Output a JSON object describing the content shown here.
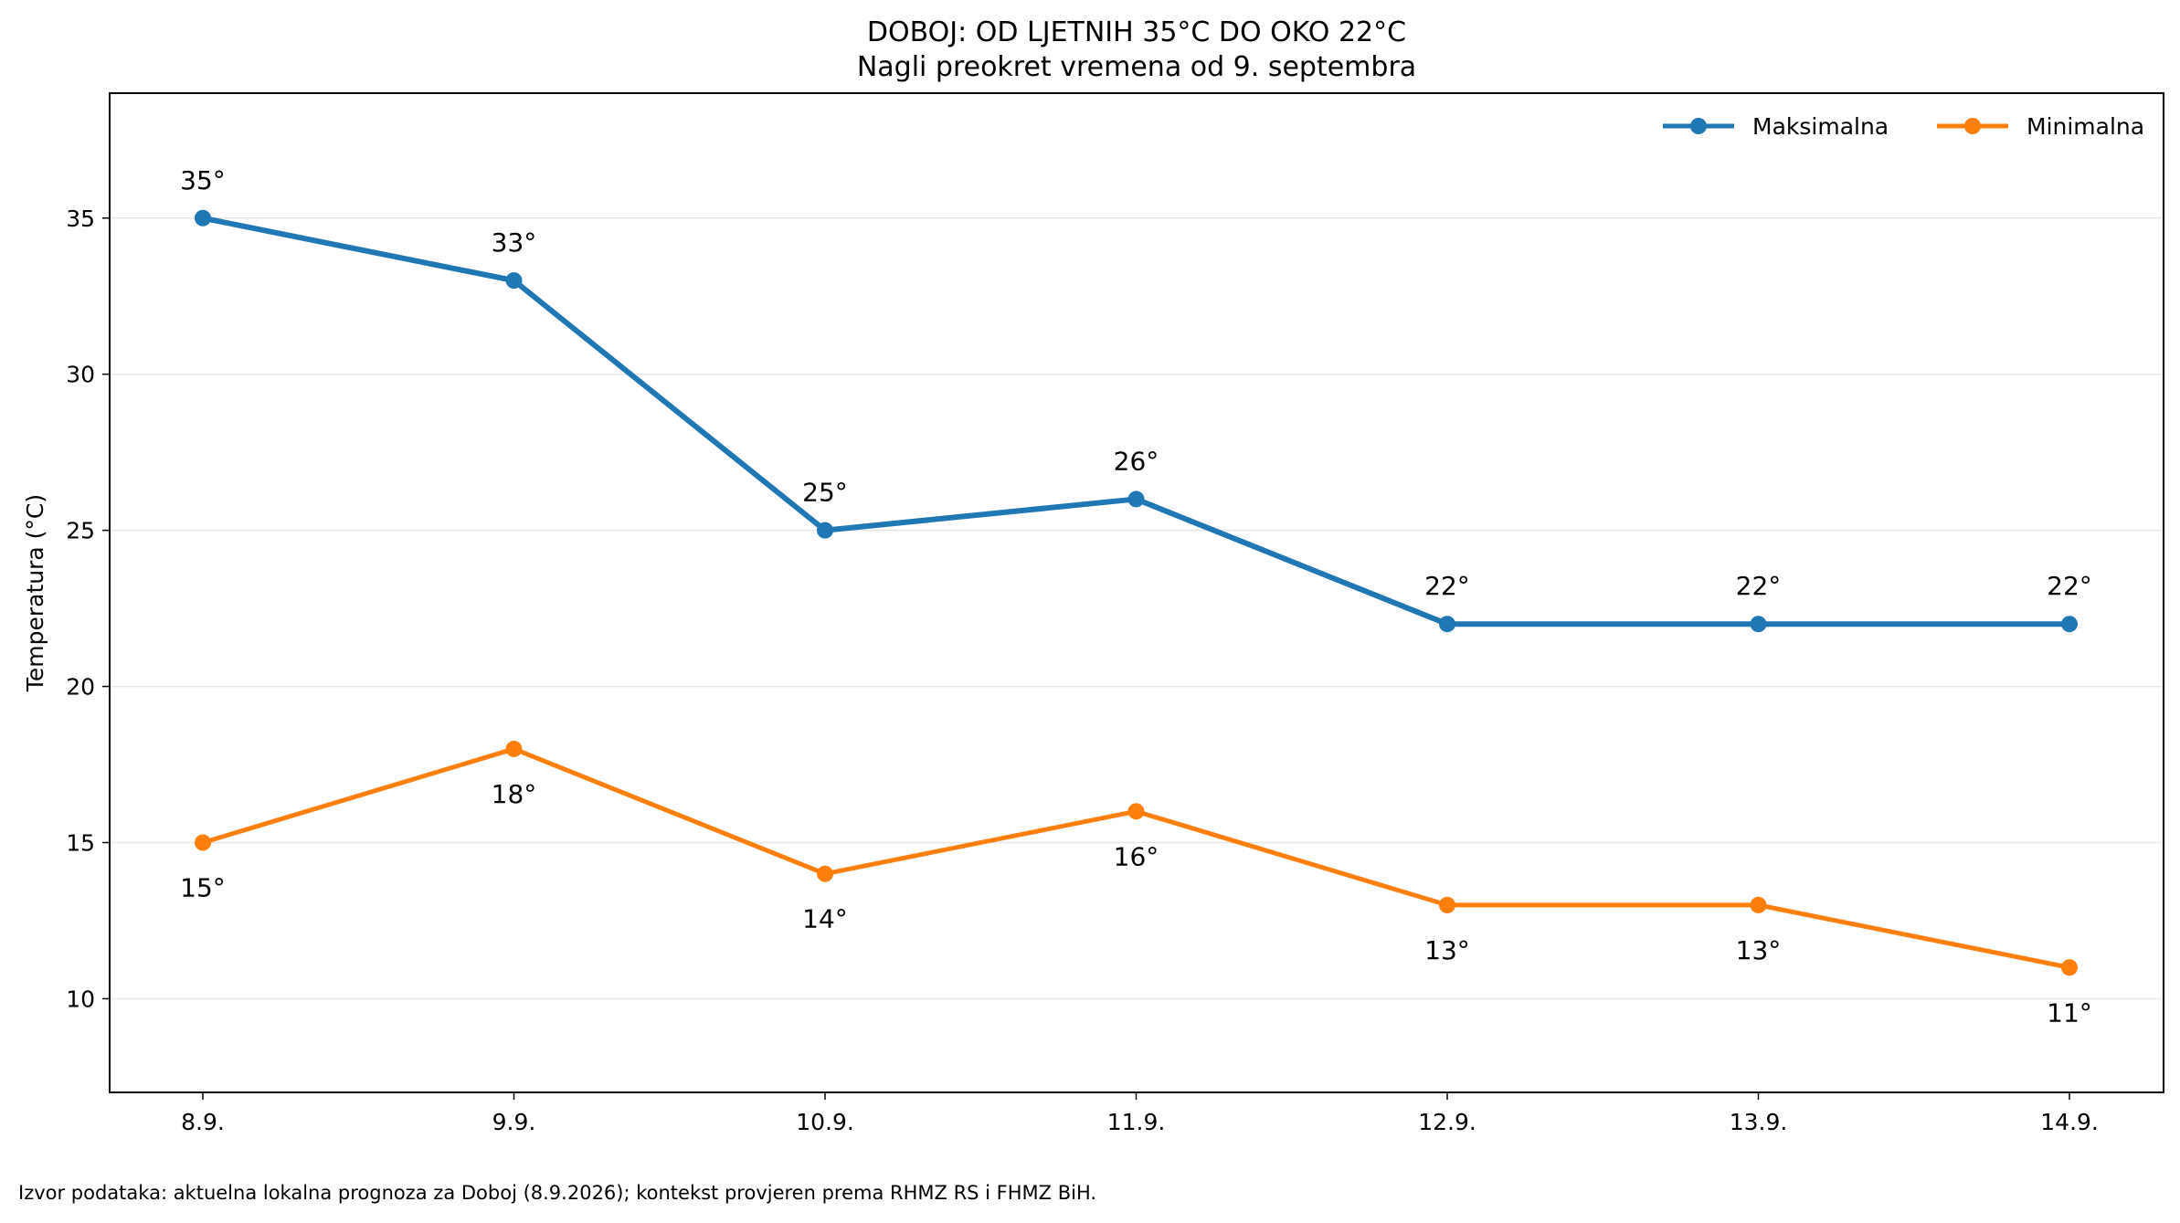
{
  "chart_data": {
    "type": "line",
    "title": "DOBOJ: OD LJETNIH 35°C DO OKO 22°C",
    "subtitle": "Nagli preokret vremena od 9. septembra",
    "xlabel": "",
    "ylabel": "Temperatura (°C)",
    "categories": [
      "8.9.",
      "9.9.",
      "10.9.",
      "11.9.",
      "12.9.",
      "13.9.",
      "14.9."
    ],
    "ylim": [
      7,
      39
    ],
    "yticks": [
      10,
      15,
      20,
      25,
      30,
      35
    ],
    "grid": "horizontal",
    "legend_position": "top-right",
    "series": [
      {
        "name": "Maksimalna",
        "color": "#1f77b4",
        "values": [
          35,
          33,
          25,
          26,
          22,
          22,
          22
        ],
        "labels": [
          "35°",
          "33°",
          "25°",
          "26°",
          "22°",
          "22°",
          "22°"
        ],
        "label_side": "above"
      },
      {
        "name": "Minimalna",
        "color": "#ff7f0e",
        "values": [
          15,
          18,
          14,
          16,
          13,
          13,
          11
        ],
        "labels": [
          "15°",
          "18°",
          "14°",
          "16°",
          "13°",
          "13°",
          "11°"
        ],
        "label_side": "below"
      }
    ]
  },
  "footer": {
    "source": "Izvor podataka: aktuelna lokalna prognoza za Doboj (8.9.2026); kontekst provjeren prema RHMZ RS i FHMZ BiH."
  }
}
